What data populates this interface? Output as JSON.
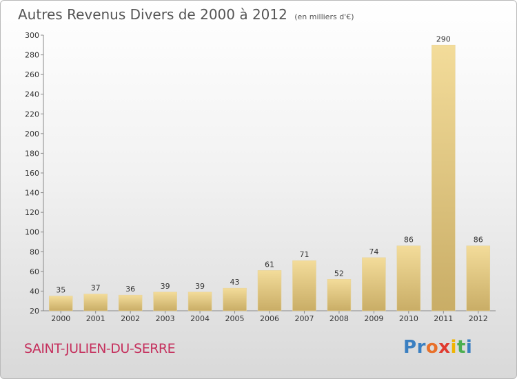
{
  "header": {
    "title": "Autres Revenus Divers de 2000 à 2012",
    "subtitle": "(en milliers d'€)"
  },
  "footer": {
    "commune": "SAINT-JULIEN-DU-SERRE",
    "logo_letters": [
      "P",
      "r",
      "o",
      "x",
      "i",
      "t",
      "i"
    ],
    "logo_colors": [
      "#3a7fc1",
      "#3a7fc1",
      "#e8702a",
      "#e03a2f",
      "#f0b400",
      "#4caf50",
      "#3a7fc1"
    ]
  },
  "colors": {
    "bar_light": "#f3dc9a",
    "bar_dark": "#c9ad66",
    "axis": "#888888",
    "commune": "#c5305d"
  },
  "chart_data": {
    "type": "bar",
    "categories": [
      "2000",
      "2001",
      "2002",
      "2003",
      "2004",
      "2005",
      "2006",
      "2007",
      "2008",
      "2009",
      "2010",
      "2011",
      "2012"
    ],
    "values": [
      35,
      37,
      36,
      39,
      39,
      43,
      61,
      71,
      52,
      74,
      86,
      290,
      86
    ],
    "title": "Autres Revenus Divers de 2000 à 2012",
    "ylabel": "",
    "xlabel": "",
    "ylim": [
      20,
      300
    ],
    "yticks": [
      20,
      40,
      60,
      80,
      100,
      120,
      140,
      160,
      180,
      200,
      220,
      240,
      260,
      280,
      300
    ],
    "grid": false
  }
}
